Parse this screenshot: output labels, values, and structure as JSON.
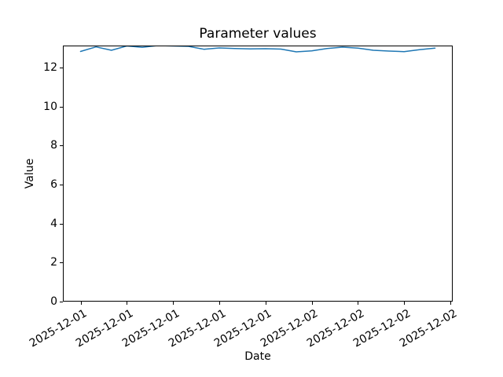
{
  "window": {
    "background": "#ffffff"
  },
  "chart_data": {
    "type": "line",
    "title": "Parameter values",
    "xlabel": "Date",
    "ylabel": "Value",
    "line_color": "#1f77b4",
    "line_width": 1.5,
    "grid": false,
    "legend": "none",
    "ylim": [
      0,
      13.12
    ],
    "yticks": [
      0,
      2,
      4,
      6,
      8,
      10,
      12
    ],
    "x_hours_span": 23,
    "x_margin_frac": 0.05,
    "x": [
      "2025-12-01 09:00",
      "2025-12-01 10:00",
      "2025-12-01 11:00",
      "2025-12-01 12:00",
      "2025-12-01 13:00",
      "2025-12-01 14:00",
      "2025-12-01 15:00",
      "2025-12-01 16:00",
      "2025-12-01 17:00",
      "2025-12-01 18:00",
      "2025-12-01 19:00",
      "2025-12-01 20:00",
      "2025-12-01 21:00",
      "2025-12-01 22:00",
      "2025-12-01 23:00",
      "2025-12-02 00:00",
      "2025-12-02 01:00",
      "2025-12-02 02:00",
      "2025-12-02 03:00",
      "2025-12-02 04:00",
      "2025-12-02 05:00",
      "2025-12-02 06:00",
      "2025-12-02 07:00",
      "2025-12-02 08:00"
    ],
    "values": [
      12.82,
      13.05,
      12.88,
      13.1,
      13.03,
      13.12,
      13.1,
      13.08,
      12.93,
      13.0,
      12.97,
      12.95,
      12.96,
      12.94,
      12.8,
      12.85,
      12.97,
      13.04,
      12.99,
      12.88,
      12.84,
      12.81,
      12.91,
      12.99
    ],
    "xticks": [
      {
        "hour": 0,
        "label": "2025-12-01"
      },
      {
        "hour": 3,
        "label": "2025-12-01"
      },
      {
        "hour": 6,
        "label": "2025-12-01"
      },
      {
        "hour": 9,
        "label": "2025-12-01"
      },
      {
        "hour": 12,
        "label": "2025-12-01"
      },
      {
        "hour": 15,
        "label": "2025-12-02"
      },
      {
        "hour": 18,
        "label": "2025-12-02"
      },
      {
        "hour": 21,
        "label": "2025-12-02"
      },
      {
        "hour": 24,
        "label": "2025-12-02"
      }
    ]
  }
}
